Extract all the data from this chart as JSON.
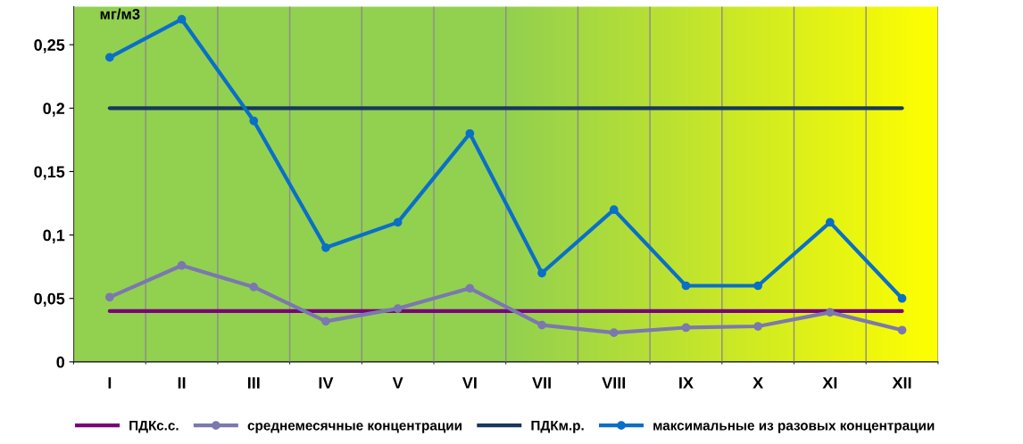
{
  "chart_data": {
    "type": "line",
    "ylabel": "мг/м3",
    "categories": [
      "I",
      "II",
      "III",
      "IV",
      "V",
      "VI",
      "VII",
      "VIII",
      "IX",
      "X",
      "XI",
      "XII"
    ],
    "series": [
      {
        "name": "ПДКс.с.",
        "color": "#7b007b",
        "marker": "none",
        "values": [
          0.04,
          0.04,
          0.04,
          0.04,
          0.04,
          0.04,
          0.04,
          0.04,
          0.04,
          0.04,
          0.04,
          0.04
        ]
      },
      {
        "name": "среднемесячные концентрации",
        "color": "#7b78b0",
        "marker": "circle",
        "values": [
          0.051,
          0.076,
          0.059,
          0.032,
          0.042,
          0.058,
          0.029,
          0.023,
          0.027,
          0.028,
          0.039,
          0.025
        ]
      },
      {
        "name": "ПДКм.р.",
        "color": "#17375e",
        "marker": "none",
        "values": [
          0.2,
          0.2,
          0.2,
          0.2,
          0.2,
          0.2,
          0.2,
          0.2,
          0.2,
          0.2,
          0.2,
          0.2
        ]
      },
      {
        "name": "максимальные из разовых концентрации",
        "color": "#0a6fc8",
        "marker": "circle",
        "values": [
          0.24,
          0.27,
          0.19,
          0.09,
          0.11,
          0.18,
          0.07,
          0.12,
          0.06,
          0.06,
          0.11,
          0.05
        ]
      }
    ],
    "ylim": [
      0,
      0.28
    ],
    "yticks": [
      0,
      {
        "value": 0.05,
        "label": "0,05"
      },
      {
        "value": 0.1,
        "label": "0,1"
      },
      {
        "value": 0.15,
        "label": "0,15"
      },
      {
        "value": 0.2,
        "label": "0,2"
      },
      {
        "value": 0.25,
        "label": "0,25"
      }
    ],
    "grid": "x",
    "legend": "bottom"
  }
}
